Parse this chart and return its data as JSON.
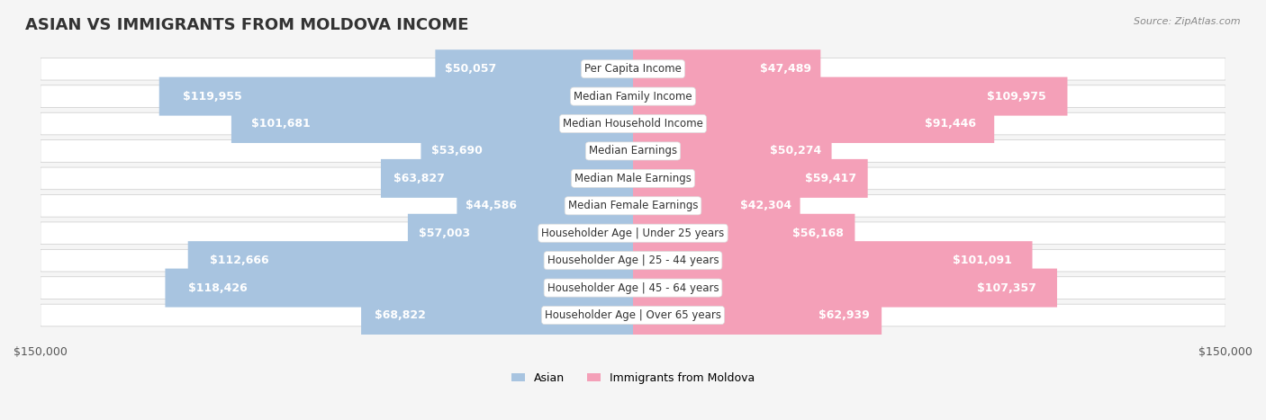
{
  "title": "ASIAN VS IMMIGRANTS FROM MOLDOVA INCOME",
  "source": "Source: ZipAtlas.com",
  "categories": [
    "Per Capita Income",
    "Median Family Income",
    "Median Household Income",
    "Median Earnings",
    "Median Male Earnings",
    "Median Female Earnings",
    "Householder Age | Under 25 years",
    "Householder Age | 25 - 44 years",
    "Householder Age | 45 - 64 years",
    "Householder Age | Over 65 years"
  ],
  "asian_values": [
    50057,
    119955,
    101681,
    53690,
    63827,
    44586,
    57003,
    112666,
    118426,
    68822
  ],
  "moldova_values": [
    47489,
    109975,
    91446,
    50274,
    59417,
    42304,
    56168,
    101091,
    107357,
    62939
  ],
  "asian_labels": [
    "$50,057",
    "$119,955",
    "$101,681",
    "$53,690",
    "$63,827",
    "$44,586",
    "$57,003",
    "$112,666",
    "$118,426",
    "$68,822"
  ],
  "moldova_labels": [
    "$47,489",
    "$109,975",
    "$91,446",
    "$50,274",
    "$59,417",
    "$42,304",
    "$56,168",
    "$101,091",
    "$107,357",
    "$62,939"
  ],
  "asian_color": "#a8c4e0",
  "moldova_color": "#f4a0b8",
  "asian_label_color_inside": "#ffffff",
  "asian_label_color_outside": "#555555",
  "moldova_label_color_inside": "#ffffff",
  "moldova_label_color_outside": "#555555",
  "max_value": 150000,
  "background_color": "#f5f5f5",
  "row_bg_color": "#ffffff",
  "row_alt_bg": "#f0f0f0",
  "category_box_color": "#ffffff",
  "title_fontsize": 13,
  "label_fontsize": 9,
  "category_fontsize": 8.5,
  "legend_asian": "Asian",
  "legend_moldova": "Immigrants from Moldova"
}
